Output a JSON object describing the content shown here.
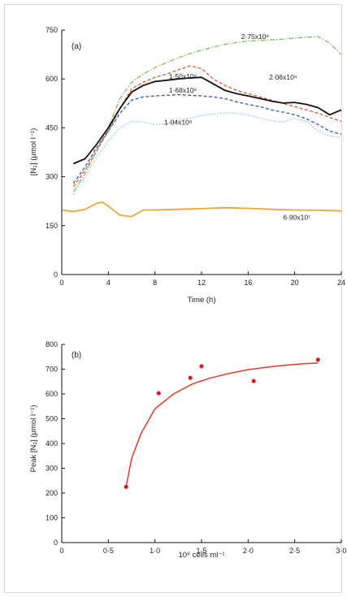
{
  "chart_data": [
    {
      "type": "line",
      "panel_label": "(a)",
      "title": "",
      "xlabel": "Time (h)",
      "ylabel": "[N₂] (μmol l⁻¹)",
      "xlim": [
        0,
        24
      ],
      "ylim": [
        0,
        750
      ],
      "xticks": [
        0,
        4,
        8,
        12,
        16,
        20,
        24
      ],
      "yticks": [
        0,
        150,
        300,
        450,
        600,
        750
      ],
      "xtick_labels": [
        "0",
        "4",
        "8",
        "12",
        "16",
        "20",
        "24"
      ],
      "ytick_labels": [
        "0",
        "150",
        "300",
        "450",
        "600",
        "750"
      ],
      "grid": false,
      "legend": "none",
      "series": [
        {
          "name": "2·75x10⁸",
          "color": "#8cc068",
          "style": "dashdot",
          "x": [
            1,
            2,
            3,
            4,
            5,
            6,
            7,
            8,
            9,
            10,
            11,
            12,
            13,
            14,
            15,
            16,
            17,
            18,
            19,
            20,
            21,
            22,
            23,
            24
          ],
          "y": [
            255,
            310,
            380,
            450,
            540,
            590,
            615,
            635,
            650,
            665,
            678,
            688,
            698,
            706,
            712,
            716,
            718,
            720,
            722,
            725,
            728,
            730,
            710,
            675
          ]
        },
        {
          "name": "2·06x10⁸",
          "color": "#e0603a",
          "style": "dashed",
          "x": [
            1,
            2,
            3,
            4,
            5,
            6,
            7,
            8,
            9,
            10,
            11,
            12,
            13,
            14,
            15,
            16,
            17,
            18,
            19,
            20,
            21,
            22,
            23,
            24
          ],
          "y": [
            270,
            320,
            380,
            440,
            510,
            570,
            590,
            605,
            615,
            628,
            640,
            632,
            600,
            580,
            565,
            555,
            545,
            535,
            525,
            515,
            505,
            495,
            482,
            470
          ]
        },
        {
          "name": "1·50x10⁸",
          "color": "#111111",
          "style": "solid",
          "x": [
            1,
            2,
            3,
            4,
            5,
            6,
            7,
            8,
            9,
            10,
            11,
            12,
            13,
            14,
            15,
            16,
            17,
            18,
            19,
            20,
            21,
            22,
            23,
            24
          ],
          "y": [
            340,
            355,
            400,
            450,
            510,
            560,
            580,
            592,
            596,
            600,
            603,
            605,
            585,
            565,
            555,
            548,
            540,
            532,
            526,
            528,
            522,
            512,
            490,
            505
          ]
        },
        {
          "name": "1·68x10⁸",
          "color": "#3c64b4",
          "style": "dashed",
          "x": [
            1,
            2,
            3,
            4,
            5,
            6,
            7,
            8,
            9,
            10,
            11,
            12,
            13,
            14,
            15,
            16,
            17,
            18,
            19,
            20,
            21,
            22,
            23,
            24
          ],
          "y": [
            280,
            330,
            390,
            440,
            495,
            535,
            545,
            548,
            550,
            552,
            550,
            548,
            545,
            540,
            530,
            522,
            515,
            505,
            498,
            490,
            478,
            460,
            440,
            430
          ]
        },
        {
          "name": "1·04x10⁸",
          "color": "#8ec6e8",
          "style": "dotted",
          "x": [
            1,
            2,
            3,
            4,
            5,
            6,
            7,
            8,
            9,
            10,
            11,
            12,
            13,
            14,
            15,
            16,
            17,
            18,
            19,
            20,
            21,
            22,
            23,
            24
          ],
          "y": [
            245,
            300,
            360,
            410,
            450,
            470,
            468,
            460,
            462,
            472,
            480,
            488,
            492,
            496,
            495,
            490,
            480,
            472,
            468,
            480,
            470,
            440,
            425,
            420
          ]
        },
        {
          "name": "6·90x10⁷",
          "color": "#e8a73a",
          "style": "solid",
          "x": [
            0,
            1,
            2,
            3,
            3.5,
            4,
            5,
            6,
            7,
            8,
            10,
            12,
            14,
            16,
            18,
            20,
            22,
            24
          ],
          "y": [
            198,
            193,
            200,
            218,
            222,
            210,
            182,
            178,
            198,
            198,
            200,
            202,
            205,
            203,
            200,
            198,
            197,
            195
          ]
        }
      ],
      "series_label_positions_note": ""
    },
    {
      "type": "scatter",
      "panel_label": "(b)",
      "title": "",
      "xlabel": "10⁸ cells ml⁻¹",
      "ylabel": "Peak [N₂] (μmol l⁻¹)",
      "xlim": [
        0,
        3.0
      ],
      "ylim": [
        0,
        800
      ],
      "xticks": [
        0,
        0.5,
        1.0,
        1.5,
        2.0,
        2.5,
        3.0
      ],
      "yticks": [
        0,
        100,
        200,
        300,
        400,
        500,
        600,
        700,
        800
      ],
      "xtick_labels": [
        "0",
        "0·5",
        "1·0",
        "1·5",
        "2·0",
        "2·5",
        "3·0"
      ],
      "ytick_labels": [
        "0",
        "100",
        "200",
        "300",
        "400",
        "500",
        "600",
        "700",
        "800"
      ],
      "grid": false,
      "legend": "none",
      "points": {
        "color": "#d42020",
        "x": [
          0.69,
          1.04,
          1.38,
          1.5,
          2.06,
          2.75
        ],
        "y": [
          225,
          603,
          665,
          712,
          652,
          738
        ]
      },
      "fit": {
        "color": "#e03a2a",
        "x": [
          0.69,
          0.75,
          0.85,
          1.0,
          1.2,
          1.4,
          1.6,
          1.8,
          2.0,
          2.2,
          2.4,
          2.6,
          2.75
        ],
        "y": [
          225,
          340,
          440,
          540,
          600,
          640,
          665,
          683,
          698,
          708,
          716,
          722,
          725
        ]
      }
    }
  ]
}
